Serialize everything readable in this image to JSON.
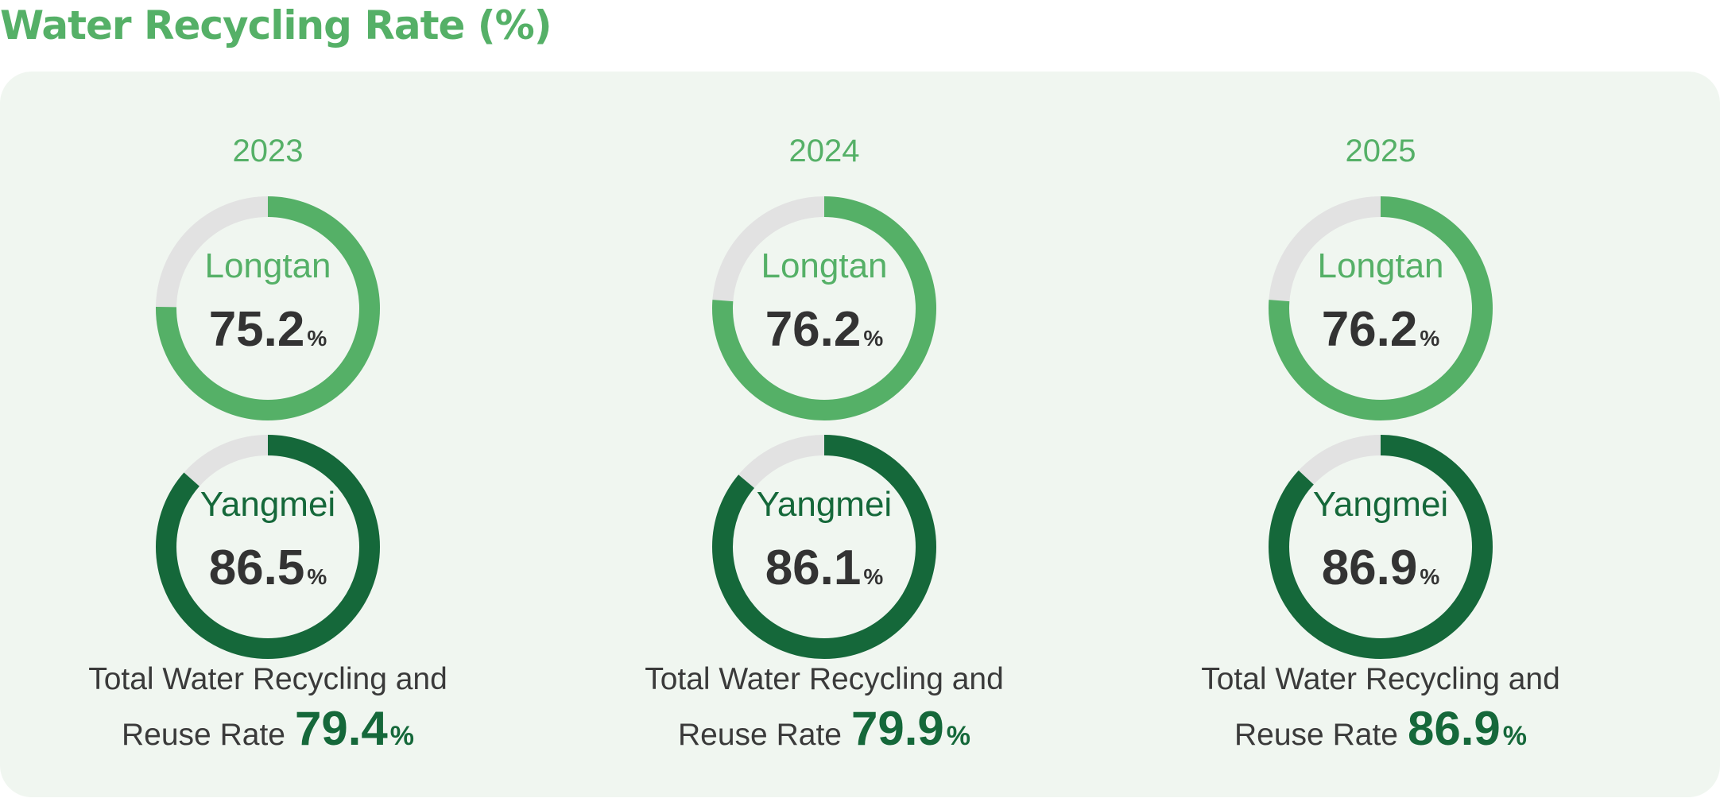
{
  "title": "Water Recycling Rate (%)",
  "colors": {
    "title": "#55b067",
    "panel_bg": "#f0f6f0",
    "longtan": "#55b067",
    "yangmei": "#15683a",
    "track": "#e2e2e2"
  },
  "labels": {
    "total_line1": "Total Water Recycling and",
    "total_line2": "Reuse Rate",
    "percent": "%"
  },
  "chart_data": {
    "type": "pie",
    "subtype": "donut",
    "unit": "%",
    "years": [
      {
        "year": "2023",
        "sites": [
          {
            "name": "Longtan",
            "value": 75.2
          },
          {
            "name": "Yangmei",
            "value": 86.5
          }
        ],
        "total": 79.4
      },
      {
        "year": "2024",
        "sites": [
          {
            "name": "Longtan",
            "value": 76.2
          },
          {
            "name": "Yangmei",
            "value": 86.1
          }
        ],
        "total": 79.9
      },
      {
        "year": "2025",
        "sites": [
          {
            "name": "Longtan",
            "value": 76.2
          },
          {
            "name": "Yangmei",
            "value": 86.9
          }
        ],
        "total": 86.9
      }
    ]
  }
}
